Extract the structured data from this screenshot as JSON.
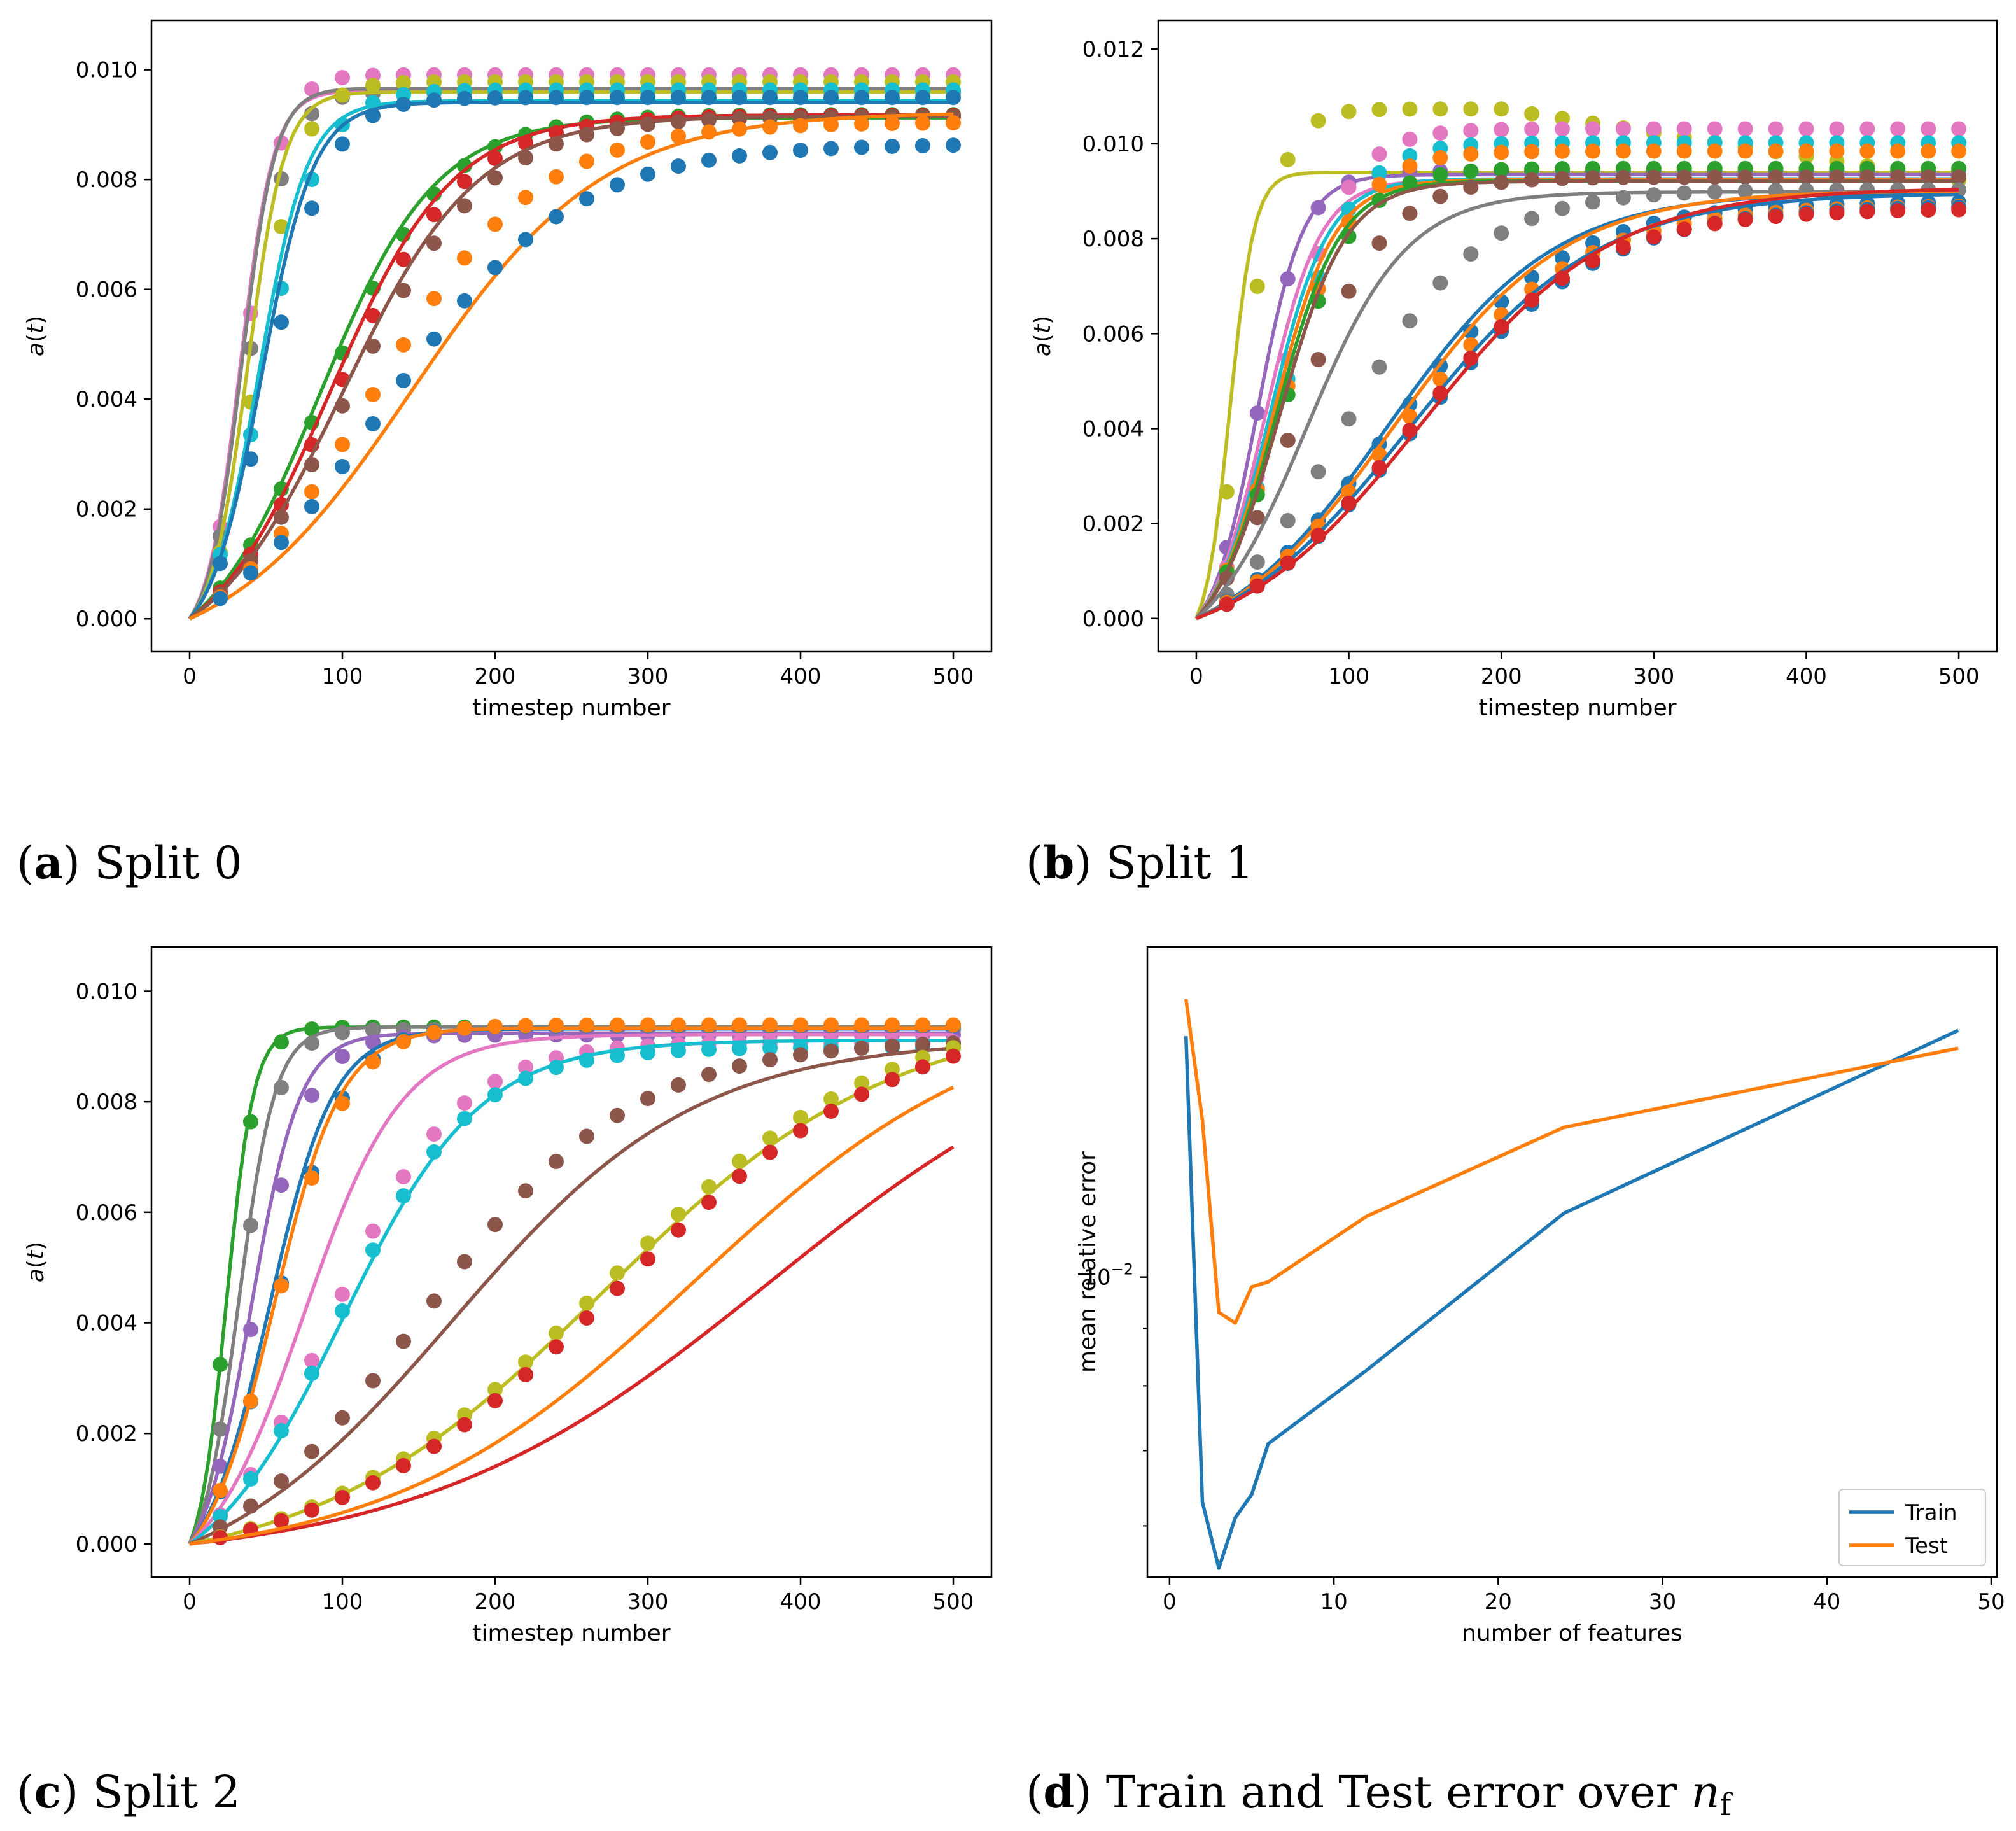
{
  "palette": [
    "#1f77b4",
    "#ff7f0e",
    "#2ca02c",
    "#d62728",
    "#9467bd",
    "#8c564b",
    "#e377c2",
    "#7f7f7f",
    "#bcbd22",
    "#17becf"
  ],
  "chart_data": [
    {
      "id": "a",
      "type": "line",
      "caption_letter": "a",
      "caption_text": "Split 0",
      "xlabel": "timestep number",
      "ylabel": "a(t)",
      "xlim": [
        -25,
        525
      ],
      "ylim": [
        -0.0006,
        0.0109
      ],
      "xticks": [
        0,
        100,
        200,
        300,
        400,
        500
      ],
      "xtick_labels": [
        "0",
        "100",
        "200",
        "300",
        "400",
        "500"
      ],
      "yticks": [
        0,
        0.002,
        0.004,
        0.006,
        0.008,
        0.01
      ],
      "ytick_labels": [
        "0.000",
        "0.002",
        "0.004",
        "0.006",
        "0.008",
        "0.010"
      ],
      "series": [
        {
          "color": 6,
          "line": {
            "A": 0.0101,
            "t50": 33,
            "s": 11
          },
          "points": {
            "A": 0.0104,
            "t50": 36,
            "s": 12
          }
        },
        {
          "color": 7,
          "line": {
            "A": 0.0101,
            "t50": 34,
            "s": 11
          },
          "points": {
            "A": 0.0101,
            "t50": 38,
            "s": 13
          }
        },
        {
          "color": 8,
          "line": {
            "A": 0.01,
            "t50": 38,
            "s": 12
          },
          "points": {
            "A": 0.0103,
            "t50": 44,
            "s": 15
          }
        },
        {
          "color": 9,
          "line": {
            "A": 0.01,
            "t50": 45,
            "s": 16
          },
          "points": {
            "A": 0.0104,
            "t50": 48,
            "s": 19
          }
        },
        {
          "color": 0,
          "line": {
            "A": 0.01,
            "t50": 47,
            "s": 17
          },
          "points": {
            "A": 0.0102,
            "t50": 52,
            "s": 20
          }
        },
        {
          "color": 2,
          "line": {
            "A": 0.0101,
            "t50": 85,
            "s": 38
          },
          "points": {
            "A": 0.0102,
            "t50": 88,
            "s": 40
          }
        },
        {
          "color": 3,
          "line": {
            "A": 0.0101,
            "t50": 92,
            "s": 40
          },
          "points": {
            "A": 0.0101,
            "t50": 96,
            "s": 42
          }
        },
        {
          "color": 5,
          "line": {
            "A": 0.0101,
            "t50": 100,
            "s": 44
          },
          "points": {
            "A": 0.0101,
            "t50": 104,
            "s": 46
          }
        },
        {
          "color": 1,
          "line": {
            "A": 0.0101,
            "t50": 146,
            "s": 62
          },
          "points": {
            "A": 0.0101,
            "t50": 118,
            "s": 55
          }
        },
        {
          "color": 0,
          "line": null,
          "points": {
            "A": 0.0098,
            "t50": 125,
            "s": 62
          }
        }
      ]
    },
    {
      "id": "b",
      "type": "line",
      "caption_letter": "b",
      "caption_text": "Split 1",
      "xlabel": "timestep number",
      "ylabel": "a(t)",
      "xlim": [
        -25,
        525
      ],
      "ylim": [
        -0.0007,
        0.0126
      ],
      "xticks": [
        0,
        100,
        200,
        300,
        400,
        500
      ],
      "xtick_labels": [
        "0",
        "100",
        "200",
        "300",
        "400",
        "500"
      ],
      "yticks": [
        0,
        0.002,
        0.004,
        0.006,
        0.008,
        0.01,
        0.012
      ],
      "ytick_labels": [
        "0.000",
        "0.002",
        "0.004",
        "0.006",
        "0.008",
        "0.010",
        "0.012"
      ],
      "series": [
        {
          "color": 8,
          "line": {
            "A": 0.01,
            "t50": 22,
            "s": 8
          },
          "points": {
            "A": 0.0118,
            "t50": 30,
            "s": 13,
            "decay": 0.0015
          }
        },
        {
          "color": 4,
          "line": {
            "A": 0.01,
            "t50": 40,
            "s": 15
          },
          "points": {
            "A": 0.0102,
            "t50": 40,
            "s": 16
          }
        },
        {
          "color": 6,
          "line": {
            "A": 0.01,
            "t50": 45,
            "s": 18
          },
          "points": {
            "A": 0.0112,
            "t50": 54,
            "s": 22
          }
        },
        {
          "color": 9,
          "line": {
            "A": 0.01,
            "t50": 48,
            "s": 19
          },
          "points": {
            "A": 0.0109,
            "t50": 56,
            "s": 23
          }
        },
        {
          "color": 1,
          "line": {
            "A": 0.01,
            "t50": 50,
            "s": 20
          },
          "points": {
            "A": 0.0108,
            "t50": 56,
            "s": 24
          }
        },
        {
          "color": 2,
          "line": {
            "A": 0.01,
            "t50": 52,
            "s": 21
          },
          "points": {
            "A": 0.0104,
            "t50": 56,
            "s": 24
          }
        },
        {
          "color": 5,
          "line": {
            "A": 0.01,
            "t50": 54,
            "s": 22
          },
          "points": {
            "A": 0.0104,
            "t50": 64,
            "s": 30
          }
        },
        {
          "color": 7,
          "line": {
            "A": 0.01,
            "t50": 72,
            "s": 33
          },
          "points": {
            "A": 0.0101,
            "t50": 96,
            "s": 45
          }
        },
        {
          "color": 0,
          "line": {
            "A": 0.0099,
            "t50": 125,
            "s": 55
          },
          "points": {
            "A": 0.0098,
            "t50": 125,
            "s": 58
          }
        },
        {
          "color": 1,
          "line": {
            "A": 0.0099,
            "t50": 130,
            "s": 56
          },
          "points": {
            "A": 0.0097,
            "t50": 130,
            "s": 60
          }
        },
        {
          "color": 0,
          "line": {
            "A": 0.0099,
            "t50": 140,
            "s": 62
          },
          "points": {
            "A": 0.0096,
            "t50": 140,
            "s": 62
          }
        },
        {
          "color": 3,
          "line": {
            "A": 0.0099,
            "t50": 148,
            "s": 62
          },
          "points": {
            "A": 0.0095,
            "t50": 138,
            "s": 60
          }
        }
      ]
    },
    {
      "id": "c",
      "type": "line",
      "caption_letter": "c",
      "caption_text": "Split 2",
      "xlabel": "timestep number",
      "ylabel": "a(t)",
      "xlim": [
        -25,
        525
      ],
      "ylim": [
        -0.0006,
        0.0108
      ],
      "xticks": [
        0,
        100,
        200,
        300,
        400,
        500
      ],
      "xtick_labels": [
        "0",
        "100",
        "200",
        "300",
        "400",
        "500"
      ],
      "yticks": [
        0,
        0.002,
        0.004,
        0.006,
        0.008,
        0.01
      ],
      "ytick_labels": [
        "0.000",
        "0.002",
        "0.004",
        "0.006",
        "0.008",
        "0.010"
      ],
      "series": [
        {
          "color": 2,
          "line": {
            "A": 0.01,
            "t50": 24,
            "s": 9
          },
          "points": {
            "A": 0.0102,
            "t50": 24,
            "s": 10
          }
        },
        {
          "color": 7,
          "line": {
            "A": 0.01,
            "t50": 32,
            "s": 12
          },
          "points": {
            "A": 0.0101,
            "t50": 32,
            "s": 13
          }
        },
        {
          "color": 4,
          "line": {
            "A": 0.01,
            "t50": 40,
            "s": 16
          },
          "points": {
            "A": 0.0101,
            "t50": 42,
            "s": 18
          }
        },
        {
          "color": 0,
          "line": {
            "A": 0.0101,
            "t50": 52,
            "s": 21
          },
          "points": {
            "A": 0.0102,
            "t50": 56,
            "s": 23
          }
        },
        {
          "color": 1,
          "line": {
            "A": 0.0101,
            "t50": 55,
            "s": 22
          },
          "points": {
            "A": 0.0103,
            "t50": 56,
            "s": 24
          }
        },
        {
          "color": 6,
          "line": {
            "A": 0.0101,
            "t50": 75,
            "s": 32
          },
          "points": {
            "A": 0.0101,
            "t50": 92,
            "s": 42
          }
        },
        {
          "color": 9,
          "line": {
            "A": 0.0101,
            "t50": 100,
            "s": 45
          },
          "points": {
            "A": 0.01,
            "t50": 96,
            "s": 44
          }
        },
        {
          "color": 5,
          "line": {
            "A": 0.0102,
            "t50": 172,
            "s": 80
          },
          "points": {
            "A": 0.0102,
            "t50": 150,
            "s": 70
          }
        },
        {
          "color": 8,
          "line": {
            "A": 0.0102,
            "t50": 270,
            "s": 95
          },
          "points": {
            "A": 0.0104,
            "t50": 270,
            "s": 95
          }
        },
        {
          "color": 3,
          "line": {
            "A": 0.0102,
            "t50": 380,
            "s": 115
          },
          "points": {
            "A": 0.0103,
            "t50": 280,
            "s": 96
          }
        },
        {
          "color": 1,
          "line": {
            "A": 0.0102,
            "t50": 330,
            "s": 100
          },
          "points": null
        }
      ]
    },
    {
      "id": "d",
      "type": "line",
      "caption_letter": "d",
      "caption_text": "Train and Test error over",
      "caption_symbol": "n",
      "caption_subscript": "f",
      "xlabel": "number of features",
      "ylabel": "mean relative error",
      "yscale": "log",
      "xlim": [
        -1.35,
        50.35
      ],
      "ylim": [
        0.0054,
        0.0197
      ],
      "xticks": [
        0,
        10,
        20,
        30,
        40,
        50
      ],
      "xtick_labels": [
        "0",
        "10",
        "20",
        "30",
        "40",
        "50"
      ],
      "yticks": [
        0.01
      ],
      "ytick_base": "10",
      "ytick_exp": "−2",
      "legend": {
        "position": "lower right",
        "entries": [
          "Train",
          "Test"
        ]
      },
      "series": [
        {
          "name": "Train",
          "color": 0,
          "x": [
            1,
            2,
            3,
            4,
            5,
            6,
            12,
            24,
            48
          ],
          "y": [
            0.0164,
            0.0063,
            0.0055,
            0.0061,
            0.0064,
            0.0071,
            0.00826,
            0.0114,
            0.0166
          ]
        },
        {
          "name": "Test",
          "color": 1,
          "x": [
            1,
            2,
            3,
            4,
            5,
            6,
            12,
            24,
            48
          ],
          "y": [
            0.0177,
            0.0138,
            0.0093,
            0.0091,
            0.0098,
            0.0099,
            0.01133,
            0.0136,
            0.016
          ]
        }
      ]
    }
  ]
}
